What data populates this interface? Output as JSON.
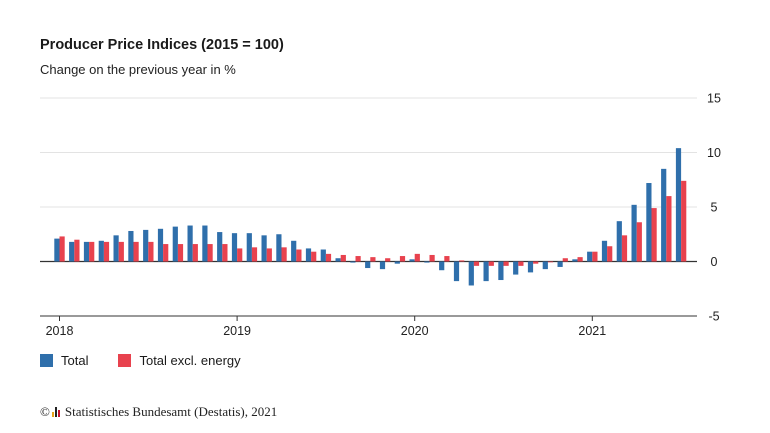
{
  "header": {
    "title": "Producer Price Indices (2015 = 100)",
    "subtitle": "Change on the previous year in %"
  },
  "legend": {
    "items": [
      {
        "label": "Total",
        "color": "#2f6fab"
      },
      {
        "label": "Total excl. energy",
        "color": "#e8424e"
      }
    ]
  },
  "footer": {
    "copyright_symbol": "©",
    "source": "Statistisches Bundesamt (Destatis), 2021"
  },
  "chart_data": {
    "type": "bar",
    "title": "Producer Price Indices (2015 = 100)",
    "subtitle": "Change on the previous year in %",
    "xlabel": "",
    "ylabel": "",
    "ylim": [
      -5,
      15
    ],
    "yticks": [
      -5,
      0,
      5,
      10,
      15
    ],
    "x_tick_labels": [
      "2018",
      "2019",
      "2020",
      "2021"
    ],
    "grid": true,
    "legend_position": "bottom-left",
    "categories": [
      "2018-01",
      "2018-02",
      "2018-03",
      "2018-04",
      "2018-05",
      "2018-06",
      "2018-07",
      "2018-08",
      "2018-09",
      "2018-10",
      "2018-11",
      "2018-12",
      "2019-01",
      "2019-02",
      "2019-03",
      "2019-04",
      "2019-05",
      "2019-06",
      "2019-07",
      "2019-08",
      "2019-09",
      "2019-10",
      "2019-11",
      "2019-12",
      "2020-01",
      "2020-02",
      "2020-03",
      "2020-04",
      "2020-05",
      "2020-06",
      "2020-07",
      "2020-08",
      "2020-09",
      "2020-10",
      "2020-11",
      "2020-12",
      "2021-01",
      "2021-02",
      "2021-03",
      "2021-04",
      "2021-05",
      "2021-06",
      "2021-07"
    ],
    "series": [
      {
        "name": "Total",
        "color": "#2f6fab",
        "values": [
          2.1,
          1.8,
          1.8,
          1.9,
          2.4,
          2.8,
          2.9,
          3.0,
          3.2,
          3.3,
          3.3,
          2.7,
          2.6,
          2.6,
          2.4,
          2.5,
          1.9,
          1.2,
          1.1,
          0.3,
          -0.1,
          -0.6,
          -0.7,
          -0.2,
          0.2,
          -0.1,
          -0.8,
          -1.8,
          -2.2,
          -1.8,
          -1.7,
          -1.2,
          -1.0,
          -0.7,
          -0.5,
          0.2,
          0.9,
          1.9,
          3.7,
          5.2,
          7.2,
          8.5,
          10.4
        ]
      },
      {
        "name": "Total excl. energy",
        "color": "#e8424e",
        "values": [
          2.3,
          2.0,
          1.8,
          1.8,
          1.8,
          1.8,
          1.8,
          1.6,
          1.6,
          1.6,
          1.6,
          1.6,
          1.2,
          1.3,
          1.2,
          1.3,
          1.1,
          0.9,
          0.7,
          0.6,
          0.5,
          0.4,
          0.3,
          0.5,
          0.7,
          0.6,
          0.5,
          0.1,
          -0.4,
          -0.4,
          -0.4,
          -0.4,
          -0.2,
          0.0,
          0.3,
          0.4,
          0.9,
          1.4,
          2.4,
          3.6,
          4.9,
          6.0,
          7.4
        ]
      }
    ]
  }
}
